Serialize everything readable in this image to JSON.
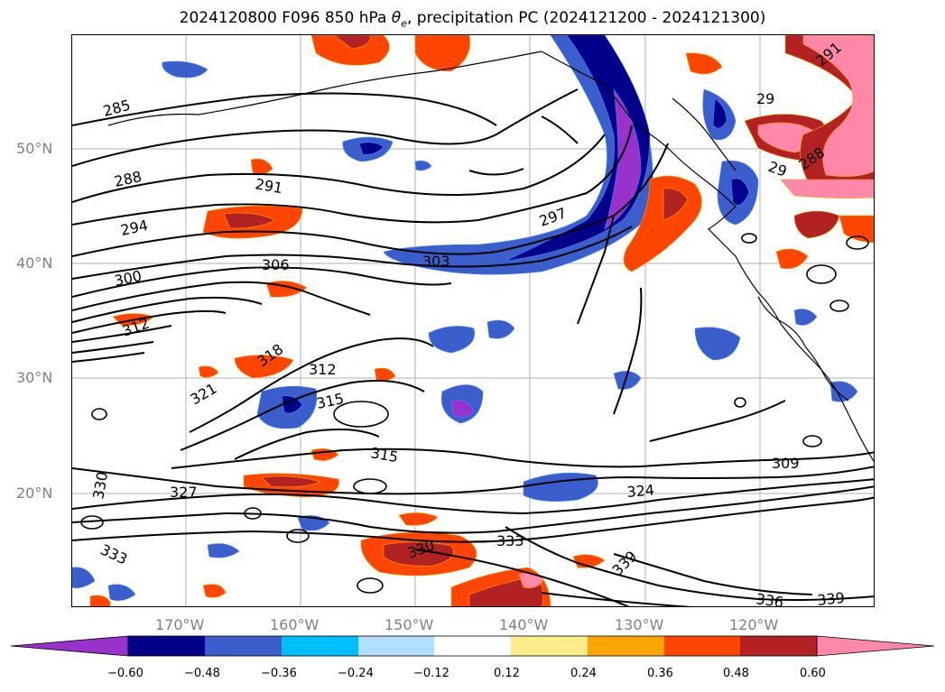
{
  "title": {
    "prefix": "2024120800 F096 850 hPa ",
    "theta": "θ",
    "theta_sub": "e",
    "suffix": ", precipitation PC (2024121200 - 2024121300)"
  },
  "map": {
    "lat_labels": [
      "50°N",
      "40°N",
      "30°N",
      "20°N"
    ],
    "lon_labels": [
      "170°W",
      "160°W",
      "150°W",
      "140°W",
      "130°W",
      "120°W"
    ],
    "contour_labels": [
      "285",
      "288",
      "291",
      "294",
      "300",
      "306",
      "303",
      "297",
      "312",
      "318",
      "312",
      "321",
      "315",
      "315",
      "330",
      "327",
      "333",
      "330",
      "333",
      "324",
      "309",
      "339",
      "336",
      "339",
      "29",
      "29",
      "291",
      "288"
    ]
  },
  "colorbar": {
    "tick_labels": [
      "−0.60",
      "−0.48",
      "−0.36",
      "−0.24",
      "−0.12",
      "0.12",
      "0.24",
      "0.36",
      "0.48",
      "0.60"
    ],
    "colors": [
      "#9932cc",
      "#00008b",
      "#3a5fcd",
      "#00bfff",
      "#b0e0ff",
      "#ffffff",
      "#ffec8b",
      "#ffa500",
      "#ff4500",
      "#b22222",
      "#ff88aa"
    ]
  }
}
